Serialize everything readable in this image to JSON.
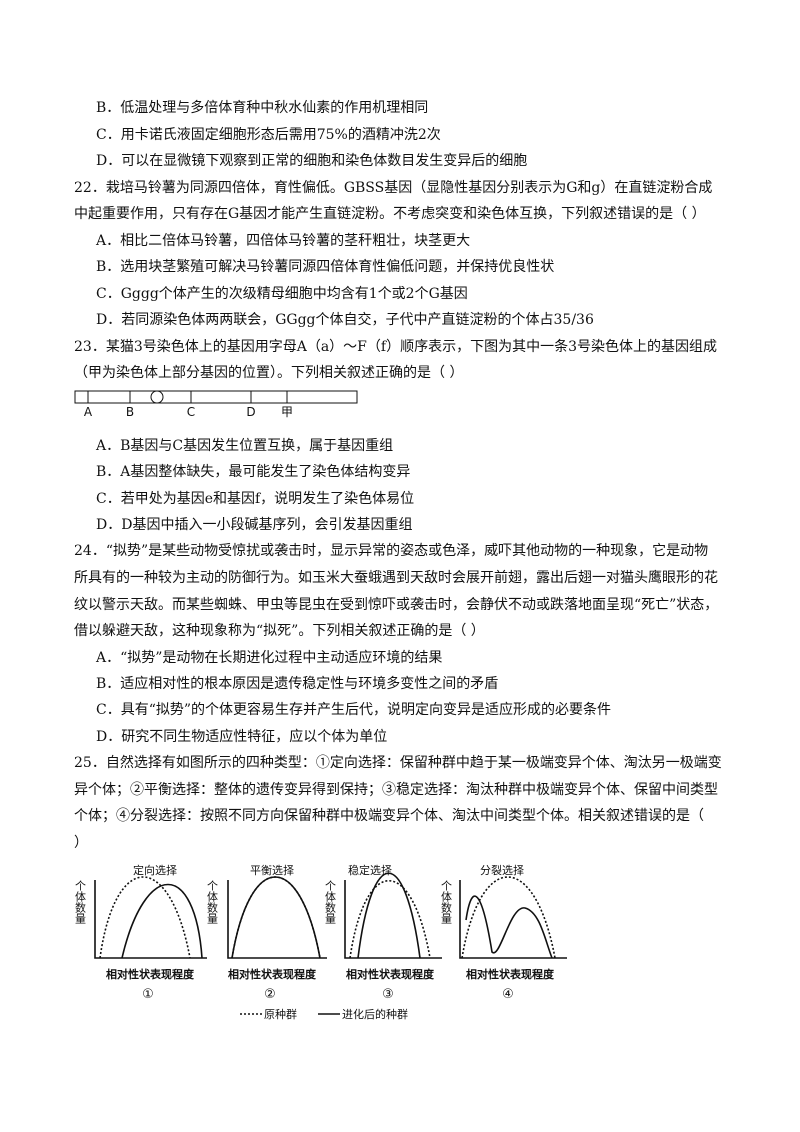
{
  "lines": [
    "B．低温处理与多倍体育种中秋水仙素的作用机理相同",
    "C．用卡诺氏液固定细胞形态后需用75%的酒精冲洗2次",
    "D．可以在显微镜下观察到正常的细胞和染色体数目发生变异后的细胞",
    "22．栽培马铃薯为同源四倍体，育性偏低。GBSS基因（显隐性基因分别表示为G和g）在直链淀粉合成",
    "中起重要作用，只有存在G基因才能产生直链淀粉。不考虑突变和染色体互换，下列叙述错误的是（    ）",
    "A．相比二倍体马铃薯，四倍体马铃薯的茎秆粗壮，块茎更大",
    "B．选用块茎繁殖可解决马铃薯同源四倍体育性偏低问题，并保持优良性状",
    "C．Gggg个体产生的次级精母细胞中均含有1个或2个G基因",
    "D．若同源染色体两两联会，GGgg个体自交，子代中产直链淀粉的个体占35/36",
    "23．某猫3号染色体上的基因用字母A（a）～F（f）顺序表示，下图为其中一条3号染色体上的基因组成",
    "（甲为染色体上部分基因的位置）。下列相关叙述正确的是（    ）",
    "A．B基因与C基因发生位置互换，属于基因重组",
    "B．A基因整体缺失，最可能发生了染色体结构变异",
    "C．若甲处为基因e和基因f，说明发生了染色体易位",
    "D．D基因中插入一小段碱基序列，会引发基因重组",
    "24．“拟势”是某些动物受惊扰或袭击时，显示异常的姿态或色泽，威吓其他动物的一种现象，它是动物",
    "所具有的一种较为主动的防御行为。如玉米大蚕蛾遇到天敌时会展开前翅，露出后翅一对猫头鹰眼形的花",
    "纹以警示天敌。而某些蜘蛛、甲虫等昆虫在受到惊吓或袭击时，会静伏不动或跌落地面呈现“死亡”状态，",
    "借以躲避天敌，这种现象称为“拟死”。下列相关叙述正确的是（    ）",
    "A．“拟势”是动物在长期进化过程中主动适应环境的结果",
    "B．适应相对性的根本原因是遗传稳定性与环境多变性之间的矛盾",
    "C．具有“拟势”的个体更容易生存并产生后代，说明定向变异是适应形成的必要条件",
    "D．研究不同生物适应性特征，应以个体为单位",
    "25．自然选择有如图所示的四种类型：①定向选择：保留种群中趋于某一极端变异个体、淘汰另一极端变",
    "异个体；②平衡选择：整体的遗传变异得到保持；③稳定选择：淘汰种群中极端变异个体、保留中间类型",
    "个体；④分裂选择：按照不同方向保留种群中极端变异个体、淘汰中间类型个体。相关叙述错误的是（",
    "）"
  ],
  "figure23": {
    "labels": [
      "A",
      "B",
      "C",
      "D",
      "甲"
    ]
  },
  "figure25": {
    "panels": [
      {
        "title": "定向选择",
        "y_label": "个体数量",
        "x_label": "相对性状表现程度",
        "number": "①"
      },
      {
        "title": "平衡选择",
        "y_label": "个体数量",
        "x_label": "相对性状表现程度",
        "number": "②"
      },
      {
        "title": "稳定选择",
        "y_label": "个体数量",
        "x_label": "相对性状表现程度",
        "number": "③"
      },
      {
        "title": "分裂选择",
        "y_label": "个体数量",
        "x_label": "相对性状表现程度",
        "number": "④"
      }
    ],
    "legend": [
      "原种群",
      "进化后的种群"
    ]
  }
}
